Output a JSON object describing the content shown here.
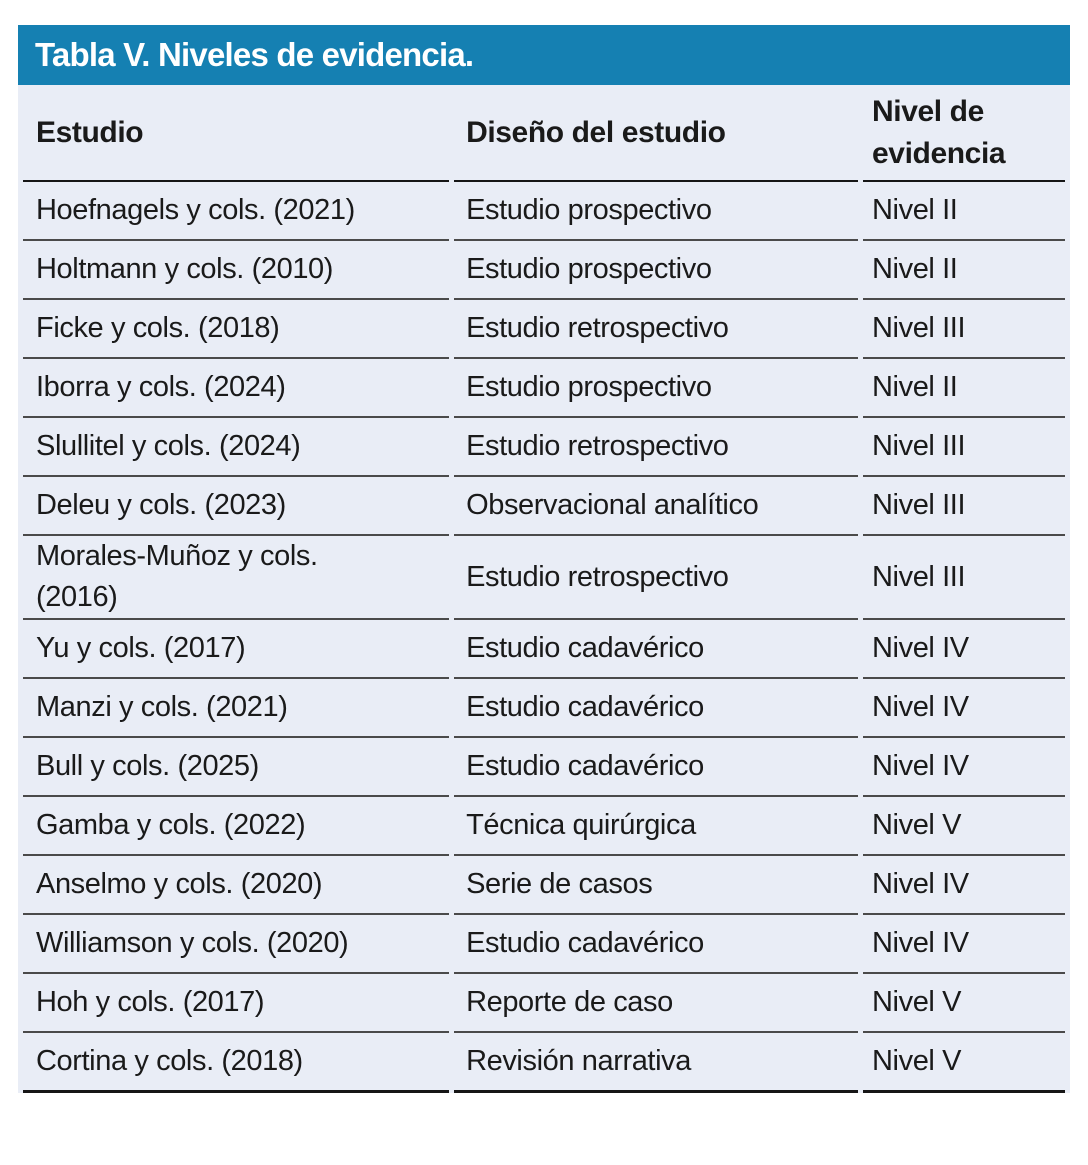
{
  "colors": {
    "title_bar_background": "#1580b2",
    "title_text": "#ffffff",
    "table_background": "#e9edf6",
    "body_text": "#1a1a1a",
    "row_divider": "#4a4a4a",
    "strong_rule": "#161616",
    "page_background": "#ffffff"
  },
  "table": {
    "title": "Tabla V. Niveles de evidencia.",
    "columns": {
      "estudio": "Estudio",
      "diseno": "Diseño del estudio",
      "nivel": "Nivel de evidencia"
    },
    "rows": [
      {
        "estudio": "Hoefnagels y cols. (2021)",
        "diseno": "Estudio prospectivo",
        "nivel": "Nivel II"
      },
      {
        "estudio": "Holtmann y cols. (2010)",
        "diseno": "Estudio prospectivo",
        "nivel": "Nivel II"
      },
      {
        "estudio": "Ficke y cols. (2018)",
        "diseno": "Estudio retrospectivo",
        "nivel": "Nivel III"
      },
      {
        "estudio": "Iborra y cols. (2024)",
        "diseno": "Estudio prospectivo",
        "nivel": "Nivel II"
      },
      {
        "estudio": "Slullitel y cols. (2024)",
        "diseno": "Estudio retrospectivo",
        "nivel": "Nivel III"
      },
      {
        "estudio": "Deleu y cols. (2023)",
        "diseno": "Observacional analítico",
        "nivel": "Nivel III"
      },
      {
        "estudio": "Morales-Muñoz y cols.\n(2016)",
        "diseno": "Estudio retrospectivo",
        "nivel": "Nivel III"
      },
      {
        "estudio": "Yu y cols. (2017)",
        "diseno": "Estudio cadavérico",
        "nivel": "Nivel IV"
      },
      {
        "estudio": "Manzi y cols. (2021)",
        "diseno": "Estudio cadavérico",
        "nivel": "Nivel IV"
      },
      {
        "estudio": "Bull y cols. (2025)",
        "diseno": "Estudio cadavérico",
        "nivel": "Nivel IV"
      },
      {
        "estudio": "Gamba y cols. (2022)",
        "diseno": "Técnica quirúrgica",
        "nivel": "Nivel V"
      },
      {
        "estudio": "Anselmo y cols. (2020)",
        "diseno": "Serie de casos",
        "nivel": "Nivel IV"
      },
      {
        "estudio": "Williamson y cols. (2020)",
        "diseno": "Estudio cadavérico",
        "nivel": "Nivel IV"
      },
      {
        "estudio": "Hoh y cols. (2017)",
        "diseno": "Reporte de caso",
        "nivel": "Nivel V"
      },
      {
        "estudio": "Cortina y cols. (2018)",
        "diseno": "Revisión narrativa",
        "nivel": "Nivel V"
      }
    ]
  }
}
